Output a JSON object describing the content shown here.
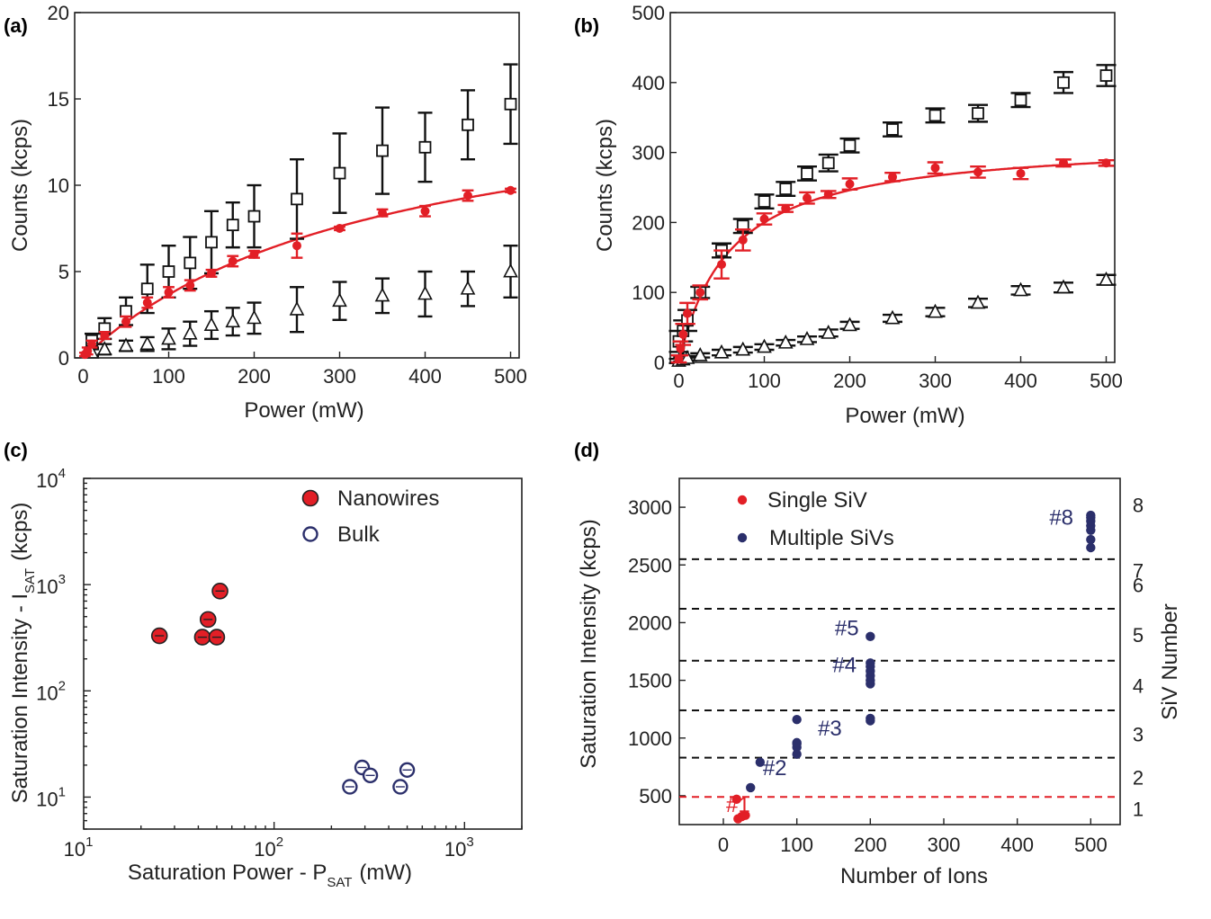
{
  "chart_data": [
    {
      "panel": "(a)",
      "type": "scatter",
      "xlabel": "Power (mW)",
      "ylabel": "Counts  (kcps)",
      "xlim": [
        -10,
        510
      ],
      "ylim": [
        0,
        20
      ],
      "xticks": [
        "0",
        "100",
        "200",
        "300",
        "400",
        "500"
      ],
      "yticks": [
        "0",
        "5",
        "10",
        "15",
        "20"
      ],
      "series": [
        {
          "name": "squares",
          "marker": "square",
          "x": [
            10,
            25,
            50,
            75,
            100,
            125,
            150,
            175,
            200,
            250,
            300,
            350,
            400,
            450,
            500
          ],
          "y": [
            1.0,
            1.7,
            2.7,
            4.0,
            5.0,
            5.5,
            6.7,
            7.7,
            8.2,
            9.2,
            10.7,
            12.0,
            12.2,
            13.5,
            14.7
          ],
          "err": [
            0.4,
            0.6,
            0.8,
            1.4,
            1.5,
            1.5,
            1.8,
            1.3,
            1.8,
            2.3,
            2.3,
            2.5,
            2.0,
            2.0,
            2.3
          ]
        },
        {
          "name": "triangles",
          "marker": "triangle",
          "x": [
            10,
            25,
            50,
            75,
            100,
            125,
            150,
            175,
            200,
            250,
            300,
            350,
            400,
            450,
            500
          ],
          "y": [
            0.3,
            0.5,
            0.7,
            0.8,
            1.1,
            1.4,
            1.9,
            2.1,
            2.3,
            2.8,
            3.3,
            3.6,
            3.7,
            4.0,
            5.0
          ],
          "err": [
            0.2,
            0.3,
            0.3,
            0.4,
            0.6,
            0.7,
            0.8,
            0.8,
            0.9,
            1.3,
            1.1,
            1.0,
            1.3,
            1.0,
            1.5
          ]
        },
        {
          "name": "red points",
          "marker": "circle",
          "color": "#e21f26",
          "x": [
            2,
            5,
            10,
            25,
            50,
            75,
            100,
            125,
            150,
            175,
            200,
            250,
            300,
            350,
            400,
            450,
            500
          ],
          "y": [
            0.2,
            0.4,
            0.8,
            1.3,
            2.1,
            3.2,
            3.8,
            4.2,
            4.9,
            5.6,
            6.0,
            6.5,
            7.5,
            8.4,
            8.5,
            9.4,
            9.7
          ],
          "err": [
            0.1,
            0.2,
            0.2,
            0.2,
            0.3,
            0.3,
            0.3,
            0.3,
            0.2,
            0.3,
            0.2,
            0.7,
            0.1,
            0.2,
            0.3,
            0.3,
            0.1
          ]
        }
      ],
      "fit": {
        "color": "#e21f26",
        "isat": 16.5,
        "psat": 350
      }
    },
    {
      "panel": "(b)",
      "type": "scatter",
      "xlabel": "Power (mW)",
      "ylabel": "Counts (kcps)",
      "xlim": [
        -10,
        510
      ],
      "ylim": [
        0,
        500
      ],
      "xticks": [
        "0",
        "100",
        "200",
        "300",
        "400",
        "500"
      ],
      "yticks": [
        "0",
        "100",
        "200",
        "300",
        "400",
        "500"
      ],
      "series": [
        {
          "name": "squares",
          "marker": "square",
          "x": [
            0,
            5,
            10,
            25,
            50,
            75,
            100,
            125,
            150,
            175,
            200,
            250,
            300,
            350,
            400,
            450,
            500
          ],
          "y": [
            30,
            45,
            60,
            100,
            160,
            195,
            230,
            248,
            270,
            285,
            310,
            333,
            353,
            356,
            375,
            400,
            410
          ],
          "err": [
            15,
            15,
            15,
            8,
            10,
            10,
            10,
            10,
            10,
            12,
            10,
            10,
            10,
            12,
            10,
            15,
            15
          ]
        },
        {
          "name": "triangles",
          "marker": "triangle",
          "x": [
            0,
            5,
            10,
            25,
            50,
            75,
            100,
            125,
            150,
            175,
            200,
            250,
            300,
            350,
            400,
            450,
            500
          ],
          "y": [
            2,
            4,
            6,
            10,
            14,
            18,
            22,
            28,
            33,
            42,
            53,
            63,
            72,
            85,
            103,
            107,
            118
          ],
          "err": [
            3,
            3,
            3,
            3,
            4,
            4,
            4,
            4,
            4,
            5,
            5,
            5,
            6,
            6,
            6,
            7,
            7
          ]
        },
        {
          "name": "red points",
          "marker": "circle",
          "color": "#e21f26",
          "x": [
            0,
            2,
            5,
            10,
            25,
            50,
            75,
            100,
            125,
            150,
            175,
            200,
            250,
            300,
            350,
            400,
            450,
            500
          ],
          "y": [
            5,
            20,
            40,
            70,
            100,
            140,
            175,
            205,
            220,
            235,
            240,
            255,
            265,
            278,
            272,
            270,
            285,
            285
          ],
          "err": [
            5,
            10,
            15,
            15,
            10,
            20,
            15,
            8,
            5,
            8,
            5,
            8,
            6,
            8,
            8,
            8,
            5,
            4
          ]
        }
      ],
      "fit": {
        "color": "#e21f26",
        "isat": 320,
        "psat": 60
      }
    },
    {
      "panel": "(c)",
      "type": "scatter",
      "xscale": "log",
      "yscale": "log",
      "xlabel": "Saturation Power - P",
      "xlabel_sub": "SAT",
      "xlabel_unit": "(mW)",
      "ylabel": "Saturation Intensity - I",
      "ylabel_sub": "SAT",
      "ylabel_unit": "(kcps)",
      "xlim": [
        10,
        2000
      ],
      "ylim": [
        5,
        10000
      ],
      "xticks": [
        {
          "base": "10",
          "exp": "1"
        },
        {
          "base": "10",
          "exp": "2"
        },
        {
          "base": "10",
          "exp": "3"
        }
      ],
      "yticks": [
        {
          "base": "10",
          "exp": "1"
        },
        {
          "base": "10",
          "exp": "2"
        },
        {
          "base": "10",
          "exp": "3"
        },
        {
          "base": "10",
          "exp": "4"
        }
      ],
      "legend": {
        "placement": "top-right"
      },
      "series": [
        {
          "name": "Nanowires",
          "marker": "filled circle",
          "color": "#e21f26",
          "x": [
            25,
            42,
            45,
            50,
            52
          ],
          "y": [
            330,
            320,
            470,
            320,
            870
          ]
        },
        {
          "name": "Bulk",
          "marker": "open circle",
          "color": "#2b2f6b",
          "x": [
            250,
            290,
            320,
            460,
            500
          ],
          "y": [
            12.5,
            19,
            16,
            12.5,
            18
          ]
        }
      ]
    },
    {
      "panel": "(d)",
      "type": "scatter",
      "xlabel": "Number of Ions",
      "ylabel": "Saturation Intensity (kcps)",
      "ylabel_right": "SiV Number",
      "xlim": [
        -60,
        540
      ],
      "ylim": [
        250,
        3250
      ],
      "xticks": [
        "0",
        "100",
        "200",
        "300",
        "400",
        "500"
      ],
      "yticks": [
        "500",
        "1000",
        "1500",
        "2000",
        "2500",
        "3000"
      ],
      "right_ticks": [
        "1",
        "2",
        "3",
        "4",
        "5",
        "6",
        "7",
        "8"
      ],
      "legend": {
        "placement": "top-left"
      },
      "hlines_black": [
        830,
        1240,
        1670,
        2120,
        2550
      ],
      "hline_red": 490,
      "series": [
        {
          "name": "Single SiV",
          "color": "#e21f26",
          "x": [
            18,
            20,
            25,
            30
          ],
          "y": [
            470,
            300,
            320,
            330
          ]
        },
        {
          "name": "Multiple SiVs",
          "color": "#2b2f6b",
          "x": [
            37,
            50,
            100,
            100,
            100,
            100,
            100,
            200,
            200,
            200,
            200,
            200,
            200,
            200,
            200,
            200,
            500,
            500,
            500,
            500,
            500,
            500,
            500
          ],
          "y": [
            570,
            790,
            860,
            920,
            950,
            960,
            1160,
            1150,
            1170,
            1470,
            1500,
            1540,
            1580,
            1620,
            1650,
            1880,
            2650,
            2720,
            2800,
            2840,
            2880,
            2910,
            2930
          ]
        }
      ],
      "annotations": [
        {
          "text": "#1",
          "x": 20,
          "y": 360,
          "color": "#e21f26"
        },
        {
          "text": "#2",
          "x": 70,
          "y": 680,
          "color": "#2b2f6b"
        },
        {
          "text": "#3",
          "x": 145,
          "y": 1020,
          "color": "#2b2f6b"
        },
        {
          "text": "#4",
          "x": 165,
          "y": 1570,
          "color": "#2b2f6b"
        },
        {
          "text": "#5",
          "x": 168,
          "y": 1890,
          "color": "#2b2f6b"
        },
        {
          "text": "#8",
          "x": 460,
          "y": 2850,
          "color": "#2b2f6b"
        }
      ]
    }
  ]
}
